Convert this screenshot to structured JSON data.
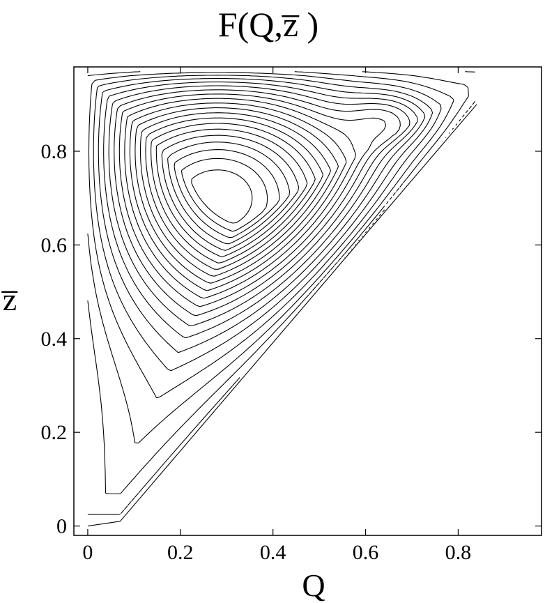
{
  "chart_data": {
    "type": "contour",
    "title": "F(Q,z̅ )",
    "xlabel": "Q",
    "ylabel": "z̅",
    "xlim": [
      -0.03,
      0.98
    ],
    "ylim": [
      -0.02,
      0.98
    ],
    "xticks": [
      0,
      0.2,
      0.4,
      0.6,
      0.8
    ],
    "xtick_labels": [
      "0",
      "0.2",
      "0.4",
      "0.6",
      "0.8"
    ],
    "yticks": [
      0,
      0.2,
      0.4,
      0.6,
      0.8
    ],
    "ytick_labels": [
      "0",
      "0.2",
      "0.4",
      "0.6",
      "0.8"
    ],
    "grid": false,
    "domain_boundary": [
      [
        0,
        0
      ],
      [
        0.07,
        0.01
      ],
      [
        0.84,
        0.9
      ],
      [
        0.84,
        0.97
      ],
      [
        0,
        0.97
      ]
    ],
    "maximum_center": [
      0.28,
      0.8
    ],
    "secondary_maximum_center": [
      0.65,
      0.88
    ],
    "contour_count": 22
  }
}
